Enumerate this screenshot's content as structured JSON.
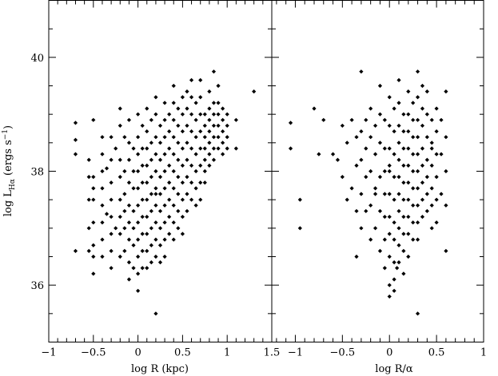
{
  "chart_data": [
    {
      "type": "scatter",
      "panel": "left",
      "xlabel": "log R (kpc)",
      "ylabel_parts": {
        "main": "log L",
        "sub": "Hα",
        "units": " (ergs s",
        "sup": "−1",
        "close": ")"
      },
      "xlim": [
        -1,
        1.5
      ],
      "ylim": [
        35,
        41
      ],
      "xticks": [
        {
          "v": -1,
          "t": "−1"
        },
        {
          "v": -0.5,
          "t": "−0.5"
        },
        {
          "v": 0,
          "t": "0"
        },
        {
          "v": 0.5,
          "t": "0.5"
        },
        {
          "v": 1,
          "t": "1"
        },
        {
          "v": 1.5,
          "t": "1.5"
        }
      ],
      "yticks": [
        {
          "v": 36,
          "t": "36"
        },
        {
          "v": 38,
          "t": "38"
        },
        {
          "v": 40,
          "t": "40"
        }
      ],
      "marker": "diamond",
      "grid": false,
      "x": [
        -0.7,
        -0.7,
        -0.7,
        -0.7,
        -0.55,
        -0.55,
        -0.55,
        -0.55,
        -0.55,
        -0.5,
        -0.5,
        -0.5,
        -0.5,
        -0.5,
        -0.5,
        -0.5,
        -0.5,
        -0.4,
        -0.4,
        -0.4,
        -0.4,
        -0.4,
        -0.4,
        -0.4,
        -0.4,
        -0.35,
        -0.35,
        -0.3,
        -0.3,
        -0.3,
        -0.3,
        -0.3,
        -0.3,
        -0.3,
        -0.3,
        -0.25,
        -0.25,
        -0.2,
        -0.2,
        -0.2,
        -0.2,
        -0.2,
        -0.2,
        -0.2,
        -0.2,
        -0.15,
        -0.15,
        -0.15,
        -0.15,
        -0.15,
        -0.15,
        -0.1,
        -0.1,
        -0.1,
        -0.1,
        -0.1,
        -0.1,
        -0.1,
        -0.1,
        -0.1,
        -0.05,
        -0.05,
        -0.05,
        -0.05,
        -0.05,
        -0.05,
        -0.05,
        0,
        0,
        0,
        0,
        0,
        0,
        0,
        0,
        0,
        0,
        0,
        0.05,
        0.05,
        0.05,
        0.05,
        0.05,
        0.05,
        0.05,
        0.05,
        0.05,
        0.1,
        0.1,
        0.1,
        0.1,
        0.1,
        0.1,
        0.1,
        0.1,
        0.1,
        0.1,
        0.15,
        0.15,
        0.15,
        0.15,
        0.15,
        0.15,
        0.15,
        0.15,
        0.15,
        0.2,
        0.2,
        0.2,
        0.2,
        0.2,
        0.2,
        0.2,
        0.2,
        0.2,
        0.2,
        0.2,
        0.25,
        0.25,
        0.25,
        0.25,
        0.25,
        0.25,
        0.25,
        0.25,
        0.25,
        0.3,
        0.3,
        0.3,
        0.3,
        0.3,
        0.3,
        0.3,
        0.3,
        0.3,
        0.3,
        0.35,
        0.35,
        0.35,
        0.35,
        0.35,
        0.35,
        0.35,
        0.35,
        0.4,
        0.4,
        0.4,
        0.4,
        0.4,
        0.4,
        0.4,
        0.4,
        0.4,
        0.4,
        0.45,
        0.45,
        0.45,
        0.45,
        0.45,
        0.45,
        0.45,
        0.45,
        0.5,
        0.5,
        0.5,
        0.5,
        0.5,
        0.5,
        0.5,
        0.5,
        0.5,
        0.55,
        0.55,
        0.55,
        0.55,
        0.55,
        0.55,
        0.55,
        0.55,
        0.6,
        0.6,
        0.6,
        0.6,
        0.6,
        0.6,
        0.6,
        0.6,
        0.65,
        0.65,
        0.65,
        0.65,
        0.65,
        0.65,
        0.65,
        0.7,
        0.7,
        0.7,
        0.7,
        0.7,
        0.7,
        0.7,
        0.7,
        0.75,
        0.75,
        0.75,
        0.75,
        0.75,
        0.75,
        0.75,
        0.8,
        0.8,
        0.8,
        0.8,
        0.8,
        0.8,
        0.8,
        0.85,
        0.85,
        0.85,
        0.85,
        0.85,
        0.85,
        0.85,
        0.9,
        0.9,
        0.9,
        0.9,
        0.9,
        0.9,
        0.95,
        0.95,
        0.95,
        0.95,
        0.95,
        1,
        1,
        1,
        1,
        1.1,
        1.1,
        1.3,
        0.2
      ],
      "y": [
        38.85,
        38.55,
        38.3,
        36.6,
        38.2,
        37.9,
        37.5,
        37.0,
        36.6,
        38.9,
        37.9,
        37.7,
        37.5,
        37.1,
        36.7,
        36.5,
        36.2,
        38.6,
        38.3,
        38.0,
        37.7,
        37.4,
        37.1,
        36.8,
        36.5,
        38.05,
        37.25,
        38.6,
        38.2,
        37.8,
        37.5,
        37.2,
        36.9,
        36.6,
        36.3,
        38.4,
        37.0,
        39.1,
        38.8,
        38.2,
        37.9,
        37.5,
        37.2,
        36.9,
        36.5,
        38.6,
        38.0,
        37.6,
        37.3,
        37.0,
        36.6,
        38.9,
        38.5,
        38.2,
        37.8,
        37.4,
        37.1,
        36.8,
        36.4,
        36.1,
        38.4,
        38.0,
        37.7,
        37.3,
        37.0,
        36.7,
        36.3,
        39.0,
        38.6,
        38.3,
        38.0,
        37.7,
        37.4,
        37.1,
        36.8,
        36.5,
        36.2,
        35.9,
        38.8,
        38.4,
        38.1,
        37.8,
        37.5,
        37.2,
        36.9,
        36.6,
        36.3,
        39.1,
        38.7,
        38.4,
        38.1,
        37.8,
        37.5,
        37.2,
        36.9,
        36.6,
        36.3,
        38.9,
        38.5,
        38.2,
        37.9,
        37.6,
        37.3,
        37.0,
        36.7,
        36.4,
        39.3,
        39.0,
        38.6,
        38.3,
        38.0,
        37.7,
        37.4,
        37.1,
        36.8,
        36.5,
        35.5,
        38.8,
        38.5,
        38.2,
        37.9,
        37.6,
        37.3,
        37.0,
        36.7,
        36.4,
        39.2,
        38.9,
        38.6,
        38.3,
        38.0,
        37.7,
        37.4,
        37.1,
        36.8,
        36.5,
        39.0,
        38.7,
        38.4,
        38.1,
        37.8,
        37.5,
        37.2,
        36.9,
        39.5,
        39.2,
        38.9,
        38.6,
        38.3,
        38.0,
        37.7,
        37.4,
        37.1,
        36.8,
        39.1,
        38.8,
        38.5,
        38.2,
        37.9,
        37.6,
        37.3,
        37.0,
        39.3,
        39.0,
        38.7,
        38.4,
        38.1,
        37.8,
        37.5,
        37.2,
        36.9,
        39.4,
        39.1,
        38.8,
        38.5,
        38.2,
        37.9,
        37.6,
        37.3,
        39.6,
        39.3,
        39.0,
        38.7,
        38.4,
        38.1,
        37.8,
        37.5,
        39.2,
        38.9,
        38.6,
        38.3,
        38.0,
        37.7,
        37.4,
        39.6,
        39.3,
        39.0,
        38.7,
        38.4,
        38.1,
        37.8,
        37.5,
        39.0,
        38.8,
        38.6,
        38.4,
        38.2,
        38.0,
        37.8,
        39.4,
        39.1,
        38.9,
        38.7,
        38.5,
        38.3,
        38.1,
        39.75,
        39.2,
        39.0,
        38.8,
        38.6,
        38.4,
        38.2,
        39.5,
        39.2,
        39.0,
        38.8,
        38.6,
        38.4,
        39.1,
        38.9,
        38.7,
        38.5,
        38.3,
        39.0,
        38.8,
        38.6,
        38.4,
        38.9,
        38.4,
        39.4,
        37.6
      ]
    },
    {
      "type": "scatter",
      "panel": "right",
      "xlabel": "log R/α",
      "xlim": [
        -1.25,
        1
      ],
      "ylim": [
        35,
        41
      ],
      "xticks": [
        {
          "v": -1,
          "t": "−1"
        },
        {
          "v": -0.5,
          "t": "−0.5"
        },
        {
          "v": 0,
          "t": "0"
        },
        {
          "v": 0.5,
          "t": "0.5"
        },
        {
          "v": 1,
          "t": "1"
        }
      ],
      "marker": "diamond",
      "grid": false,
      "x": [
        -1.05,
        -1.05,
        -0.95,
        -0.95,
        -0.8,
        -0.75,
        -0.7,
        -0.6,
        -0.55,
        -0.5,
        -0.5,
        -0.45,
        -0.45,
        -0.4,
        -0.4,
        -0.35,
        -0.35,
        -0.35,
        -0.3,
        -0.3,
        -0.3,
        -0.3,
        -0.3,
        -0.25,
        -0.25,
        -0.25,
        -0.25,
        -0.2,
        -0.2,
        -0.2,
        -0.2,
        -0.2,
        -0.15,
        -0.15,
        -0.15,
        -0.15,
        -0.1,
        -0.1,
        -0.1,
        -0.1,
        -0.1,
        -0.1,
        -0.05,
        -0.05,
        -0.05,
        -0.05,
        -0.05,
        -0.05,
        -0.05,
        0,
        0,
        0,
        0,
        0,
        0,
        0,
        0,
        0,
        0,
        0.05,
        0.05,
        0.05,
        0.05,
        0.05,
        0.05,
        0.05,
        0.05,
        0.05,
        0.05,
        0.1,
        0.1,
        0.1,
        0.1,
        0.1,
        0.1,
        0.1,
        0.1,
        0.1,
        0.1,
        0.1,
        0.15,
        0.15,
        0.15,
        0.15,
        0.15,
        0.15,
        0.15,
        0.15,
        0.15,
        0.15,
        0.2,
        0.2,
        0.2,
        0.2,
        0.2,
        0.2,
        0.2,
        0.2,
        0.2,
        0.2,
        0.25,
        0.25,
        0.25,
        0.25,
        0.25,
        0.25,
        0.25,
        0.25,
        0.25,
        0.3,
        0.3,
        0.3,
        0.3,
        0.3,
        0.3,
        0.3,
        0.3,
        0.3,
        0.3,
        0.35,
        0.35,
        0.35,
        0.35,
        0.35,
        0.35,
        0.35,
        0.35,
        0.4,
        0.4,
        0.4,
        0.4,
        0.4,
        0.4,
        0.4,
        0.45,
        0.45,
        0.45,
        0.45,
        0.45,
        0.45,
        0.5,
        0.5,
        0.5,
        0.5,
        0.5,
        0.5,
        0.55,
        0.55,
        0.55,
        0.6,
        0.6,
        0.6,
        0.6,
        0.6,
        -0.35,
        0.3,
        0.08,
        0.0,
        -0.15,
        0.45
      ],
      "y": [
        38.85,
        38.4,
        37.5,
        37.0,
        39.1,
        38.3,
        38.9,
        38.3,
        38.2,
        38.8,
        37.9,
        38.5,
        37.5,
        38.9,
        37.7,
        38.6,
        38.1,
        37.3,
        39.75,
        38.7,
        38.2,
        37.6,
        37.0,
        38.9,
        38.4,
        37.9,
        37.3,
        39.1,
        38.6,
        38.0,
        37.4,
        36.8,
        38.8,
        38.3,
        37.7,
        37.0,
        39.5,
        39.0,
        38.5,
        37.9,
        37.3,
        36.6,
        38.9,
        38.4,
        38.0,
        37.6,
        37.2,
        36.8,
        36.3,
        39.3,
        38.8,
        38.4,
        38.0,
        37.6,
        37.2,
        36.9,
        36.5,
        36.0,
        35.8,
        39.1,
        38.7,
        38.3,
        37.9,
        37.5,
        37.1,
        36.8,
        36.4,
        36.1,
        35.9,
        39.6,
        39.2,
        38.8,
        38.5,
        38.2,
        37.9,
        37.6,
        37.3,
        37.0,
        36.7,
        36.4,
        39.0,
        38.7,
        38.4,
        38.1,
        37.8,
        37.5,
        37.2,
        36.9,
        36.6,
        36.2,
        39.4,
        39.0,
        38.7,
        38.4,
        38.1,
        37.8,
        37.5,
        37.2,
        36.9,
        36.5,
        39.2,
        38.9,
        38.6,
        38.3,
        38.0,
        37.7,
        37.4,
        37.1,
        36.8,
        39.75,
        39.3,
        38.9,
        38.6,
        38.3,
        38.0,
        37.7,
        37.4,
        37.1,
        36.8,
        39.5,
        39.1,
        38.8,
        38.4,
        38.1,
        37.8,
        37.5,
        37.2,
        39.4,
        39.0,
        38.6,
        38.2,
        37.9,
        37.6,
        37.3,
        38.9,
        38.5,
        38.1,
        37.7,
        37.4,
        37.0,
        39.1,
        38.7,
        38.3,
        37.9,
        37.5,
        37.1,
        38.9,
        38.3,
        37.6,
        39.4,
        38.6,
        38.0,
        37.4,
        36.6,
        36.5,
        35.5,
        36.3,
        38.1,
        37.6,
        38.4
      ]
    }
  ]
}
